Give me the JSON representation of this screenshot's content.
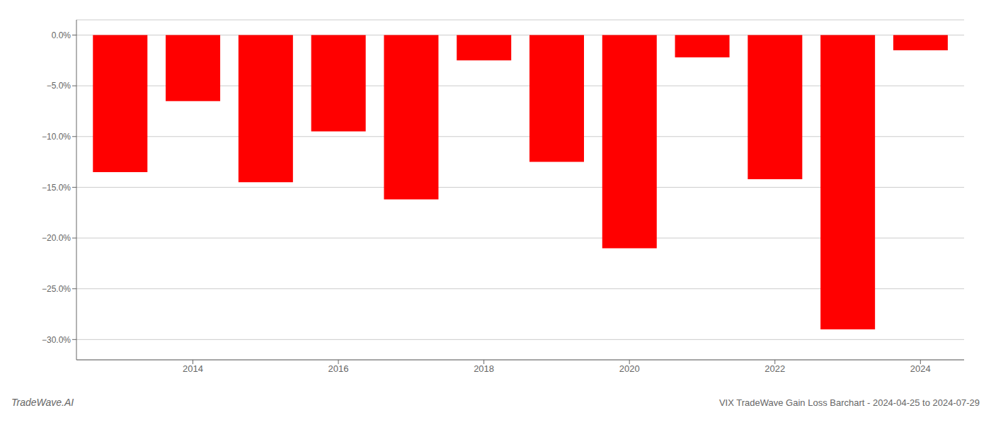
{
  "chart_data": {
    "type": "bar",
    "title": "VIX TradeWave Gain Loss Barchart - 2024-04-25 to 2024-07-29",
    "annotations": [
      "TradeWave.AI"
    ],
    "x": [
      2013,
      2014,
      2015,
      2016,
      2017,
      2018,
      2019,
      2020,
      2021,
      2022,
      2023,
      2024
    ],
    "values": [
      -13.5,
      -6.5,
      -14.5,
      -9.5,
      -16.2,
      -2.5,
      -12.5,
      -21.0,
      -2.2,
      -14.2,
      -29.0,
      -1.5
    ],
    "color": "#ff0000",
    "xlim": [
      2012.4,
      2024.6
    ],
    "xticks": [
      2014,
      2016,
      2018,
      2020,
      2022,
      2024
    ],
    "ylim": [
      -32,
      1.5
    ],
    "yticks": [
      {
        "value": 0,
        "label": "0.0%"
      },
      {
        "value": -5,
        "label": "−5.0%"
      },
      {
        "value": -10,
        "label": "−10.0%"
      },
      {
        "value": -15,
        "label": "−15.0%"
      },
      {
        "value": -20,
        "label": "−20.0%"
      },
      {
        "value": -25,
        "label": "−25.0%"
      },
      {
        "value": -30,
        "label": "−30.0%"
      }
    ],
    "grid": true
  }
}
